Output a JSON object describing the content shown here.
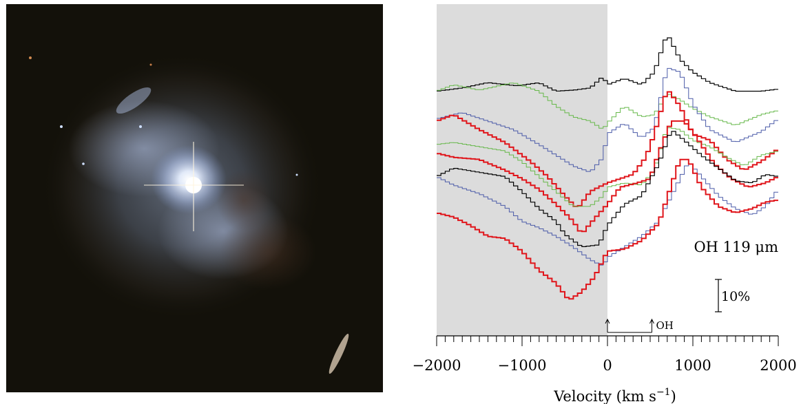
{
  "left_panel": {
    "type": "image",
    "subject": "galaxy-photograph"
  },
  "chart_data": {
    "type": "line",
    "xlabel_main": "Velocity (km s",
    "xlabel_sup": "−1",
    "xlabel_close": ")",
    "xlim": [
      -2000,
      2000
    ],
    "xticks": [
      -2000,
      -1000,
      0,
      1000,
      2000
    ],
    "xtick_labels": [
      "−2000",
      "−1000",
      "0",
      "1000",
      "2000"
    ],
    "minor_tick_step": 100,
    "shaded_region": [
      -2000,
      0
    ],
    "shade_color": "#dcdcdc",
    "line_annotation": "OH 119 μm",
    "scale_bar_label": "10%",
    "transition_marker": {
      "label": "OH",
      "x": [
        0,
        520
      ]
    },
    "colors": {
      "black": "#000000",
      "green": "#66b84a",
      "blue": "#4a5aa8",
      "red": "#e0141a"
    },
    "series": [
      {
        "color_key": "black",
        "width": 1.2,
        "values": [
          [
            -2000,
            0.15
          ],
          [
            -1700,
            0.135
          ],
          [
            -1400,
            0.11
          ],
          [
            -1050,
            0.125
          ],
          [
            -800,
            0.11
          ],
          [
            -600,
            0.15
          ],
          [
            -400,
            0.145
          ],
          [
            -200,
            0.135
          ],
          [
            -50,
            0.08
          ],
          [
            0,
            0.12
          ],
          [
            200,
            0.09
          ],
          [
            400,
            0.12
          ],
          [
            550,
            0.06
          ],
          [
            700,
            -0.12
          ],
          [
            850,
            0.0
          ],
          [
            1000,
            0.06
          ],
          [
            1200,
            0.11
          ],
          [
            1500,
            0.15
          ],
          [
            1800,
            0.15
          ],
          [
            2000,
            0.14
          ]
        ]
      },
      {
        "color_key": "green",
        "width": 1.0,
        "values": [
          [
            -2000,
            0.15
          ],
          [
            -1800,
            0.12
          ],
          [
            -1500,
            0.145
          ],
          [
            -1100,
            0.11
          ],
          [
            -800,
            0.15
          ],
          [
            -600,
            0.22
          ],
          [
            -400,
            0.27
          ],
          [
            -200,
            0.29
          ],
          [
            -50,
            0.33
          ],
          [
            0,
            0.3
          ],
          [
            200,
            0.22
          ],
          [
            400,
            0.27
          ],
          [
            550,
            0.26
          ],
          [
            700,
            0.16
          ],
          [
            850,
            0.19
          ],
          [
            1000,
            0.23
          ],
          [
            1200,
            0.27
          ],
          [
            1500,
            0.31
          ],
          [
            1800,
            0.26
          ],
          [
            2000,
            0.24
          ]
        ]
      },
      {
        "color_key": "blue",
        "width": 1.0,
        "values": [
          [
            -2000,
            0.28
          ],
          [
            -1700,
            0.25
          ],
          [
            -1400,
            0.29
          ],
          [
            -1100,
            0.33
          ],
          [
            -800,
            0.4
          ],
          [
            -600,
            0.45
          ],
          [
            -400,
            0.5
          ],
          [
            -200,
            0.53
          ],
          [
            -50,
            0.46
          ],
          [
            0,
            0.35
          ],
          [
            200,
            0.3
          ],
          [
            400,
            0.37
          ],
          [
            550,
            0.32
          ],
          [
            700,
            0.04
          ],
          [
            850,
            0.06
          ],
          [
            1000,
            0.21
          ],
          [
            1200,
            0.33
          ],
          [
            1500,
            0.39
          ],
          [
            1800,
            0.34
          ],
          [
            2000,
            0.28
          ]
        ]
      },
      {
        "color_key": "red",
        "width": 2.0,
        "values": [
          [
            -2000,
            0.29
          ],
          [
            -1800,
            0.26
          ],
          [
            -1500,
            0.33
          ],
          [
            -1200,
            0.39
          ],
          [
            -900,
            0.48
          ],
          [
            -700,
            0.55
          ],
          [
            -500,
            0.64
          ],
          [
            -350,
            0.7
          ],
          [
            -200,
            0.62
          ],
          [
            0,
            0.58
          ],
          [
            150,
            0.56
          ],
          [
            300,
            0.54
          ],
          [
            450,
            0.46
          ],
          [
            550,
            0.35
          ],
          [
            700,
            0.14
          ],
          [
            850,
            0.22
          ],
          [
            1000,
            0.35
          ],
          [
            1200,
            0.38
          ],
          [
            1400,
            0.47
          ],
          [
            1600,
            0.52
          ],
          [
            1800,
            0.48
          ],
          [
            2000,
            0.42
          ]
        ]
      },
      {
        "color_key": "green",
        "width": 1.0,
        "values": [
          [
            -2000,
            0.4
          ],
          [
            -1800,
            0.39
          ],
          [
            -1500,
            0.41
          ],
          [
            -1200,
            0.43
          ],
          [
            -1000,
            0.48
          ],
          [
            -800,
            0.55
          ],
          [
            -600,
            0.62
          ],
          [
            -400,
            0.69
          ],
          [
            -200,
            0.69
          ],
          [
            -50,
            0.64
          ],
          [
            0,
            0.6
          ],
          [
            200,
            0.58
          ],
          [
            400,
            0.59
          ],
          [
            550,
            0.52
          ],
          [
            700,
            0.32
          ],
          [
            850,
            0.33
          ],
          [
            1000,
            0.38
          ],
          [
            1200,
            0.41
          ],
          [
            1400,
            0.46
          ],
          [
            1600,
            0.5
          ],
          [
            1800,
            0.45
          ],
          [
            2000,
            0.43
          ]
        ]
      },
      {
        "color_key": "red",
        "width": 2.0,
        "values": [
          [
            -2000,
            0.44
          ],
          [
            -1800,
            0.46
          ],
          [
            -1500,
            0.47
          ],
          [
            -1200,
            0.52
          ],
          [
            -1000,
            0.56
          ],
          [
            -800,
            0.61
          ],
          [
            -600,
            0.68
          ],
          [
            -400,
            0.76
          ],
          [
            -300,
            0.82
          ],
          [
            -200,
            0.77
          ],
          [
            0,
            0.68
          ],
          [
            150,
            0.6
          ],
          [
            350,
            0.58
          ],
          [
            500,
            0.56
          ],
          [
            600,
            0.44
          ],
          [
            750,
            0.29
          ],
          [
            900,
            0.29
          ],
          [
            1050,
            0.37
          ],
          [
            1250,
            0.49
          ],
          [
            1450,
            0.56
          ],
          [
            1650,
            0.6
          ],
          [
            1850,
            0.58
          ],
          [
            2000,
            0.55
          ]
        ]
      },
      {
        "color_key": "black",
        "width": 1.2,
        "values": [
          [
            -2000,
            0.55
          ],
          [
            -1800,
            0.51
          ],
          [
            -1500,
            0.53
          ],
          [
            -1200,
            0.55
          ],
          [
            -1000,
            0.62
          ],
          [
            -800,
            0.7
          ],
          [
            -600,
            0.76
          ],
          [
            -500,
            0.82
          ],
          [
            -300,
            0.88
          ],
          [
            -100,
            0.87
          ],
          [
            0,
            0.78
          ],
          [
            200,
            0.68
          ],
          [
            400,
            0.64
          ],
          [
            600,
            0.49
          ],
          [
            750,
            0.33
          ],
          [
            900,
            0.38
          ],
          [
            1100,
            0.45
          ],
          [
            1300,
            0.51
          ],
          [
            1500,
            0.57
          ],
          [
            1700,
            0.58
          ],
          [
            1850,
            0.54
          ],
          [
            2000,
            0.55
          ]
        ]
      },
      {
        "color_key": "blue",
        "width": 1.0,
        "values": [
          [
            -2000,
            0.55
          ],
          [
            -1800,
            0.59
          ],
          [
            -1500,
            0.63
          ],
          [
            -1200,
            0.69
          ],
          [
            -1000,
            0.76
          ],
          [
            -800,
            0.79
          ],
          [
            -600,
            0.83
          ],
          [
            -400,
            0.88
          ],
          [
            -200,
            0.94
          ],
          [
            -50,
            0.97
          ],
          [
            0,
            0.93
          ],
          [
            200,
            0.88
          ],
          [
            400,
            0.83
          ],
          [
            600,
            0.76
          ],
          [
            800,
            0.6
          ],
          [
            950,
            0.48
          ],
          [
            1100,
            0.55
          ],
          [
            1300,
            0.64
          ],
          [
            1500,
            0.7
          ],
          [
            1700,
            0.73
          ],
          [
            1850,
            0.69
          ],
          [
            2000,
            0.61
          ]
        ]
      },
      {
        "color_key": "red",
        "width": 2.0,
        "values": [
          [
            -2000,
            0.72
          ],
          [
            -1800,
            0.74
          ],
          [
            -1600,
            0.78
          ],
          [
            -1400,
            0.83
          ],
          [
            -1200,
            0.84
          ],
          [
            -1000,
            0.9
          ],
          [
            -800,
            0.99
          ],
          [
            -600,
            1.05
          ],
          [
            -450,
            1.13
          ],
          [
            -300,
            1.09
          ],
          [
            -150,
            1.02
          ],
          [
            0,
            0.9
          ],
          [
            200,
            0.89
          ],
          [
            400,
            0.85
          ],
          [
            600,
            0.77
          ],
          [
            750,
            0.59
          ],
          [
            850,
            0.47
          ],
          [
            950,
            0.47
          ],
          [
            1100,
            0.6
          ],
          [
            1300,
            0.69
          ],
          [
            1500,
            0.72
          ],
          [
            1700,
            0.7
          ],
          [
            1850,
            0.67
          ],
          [
            2000,
            0.66
          ]
        ]
      }
    ]
  }
}
